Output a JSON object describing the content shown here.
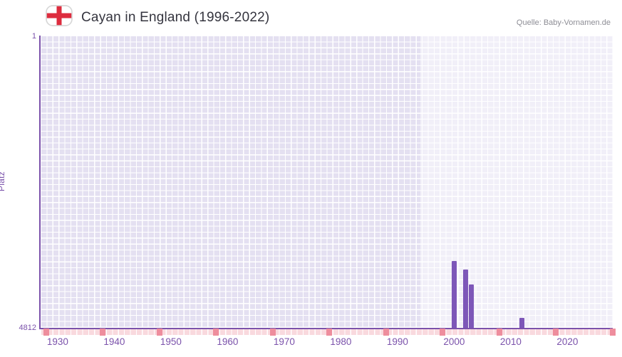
{
  "header": {
    "title": "Cayan in England (1996-2022)",
    "source": "Quelle: Baby-Vornamen.de",
    "flag_icon": "england-flag-icon"
  },
  "chart_data": {
    "type": "bar",
    "title": "Cayan in England (1996-2022)",
    "xlabel": "",
    "ylabel": "Platz",
    "y_axis": {
      "top_label": "1",
      "bottom_label": "4812",
      "min": 1,
      "max": 4812,
      "inverted": true
    },
    "x_axis": {
      "min": 1927,
      "max": 2028,
      "ticks": [
        1930,
        1940,
        1950,
        1960,
        1970,
        1980,
        1990,
        2000,
        2010,
        2020
      ]
    },
    "highlight_band": {
      "from": 1994,
      "to": 2028
    },
    "points": [
      {
        "year": 2000,
        "rank": 3703
      },
      {
        "year": 2002,
        "rank": 3843
      },
      {
        "year": 2003,
        "rank": 4088
      },
      {
        "year": 2012,
        "rank": 4637
      }
    ],
    "decade_markers": [
      1928,
      1938,
      1948,
      1958,
      1968,
      1978,
      1988,
      1998,
      2008,
      2018,
      2028
    ],
    "legend": "none",
    "grid": true,
    "colors": {
      "bar": "#7d57b8",
      "axis": "#7b52ab",
      "tick_text": "#7b52ab",
      "grid_cell": "#e4e0f1",
      "band_overlay": "rgba(255,255,255,0.48)",
      "strip": "#f9d9de",
      "strip_marker": "#ee8d9d",
      "flag_cross": "#dd2c3e"
    }
  }
}
